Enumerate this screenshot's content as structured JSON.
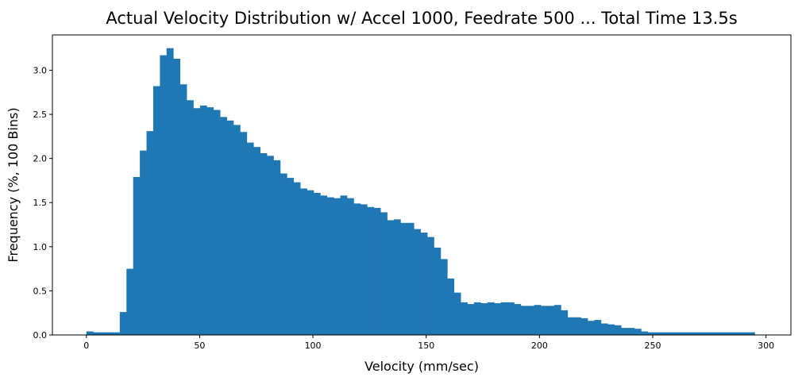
{
  "chart_data": {
    "type": "bar",
    "subtype": "histogram",
    "title": "Actual Velocity Distribution w/ Accel 1000, Feedrate 500 ... Total Time 13.5s",
    "xlabel": "Velocity (mm/sec)",
    "ylabel": "Frequency (%, 100 Bins)",
    "xlim": [
      -15,
      311
    ],
    "ylim": [
      0,
      3.4
    ],
    "bin_start": 0,
    "bin_width": 2.95,
    "xticks": [
      0,
      50,
      100,
      150,
      200,
      250,
      300
    ],
    "yticks": [
      "0.0",
      "0.5",
      "1.0",
      "1.5",
      "2.0",
      "2.5",
      "3.0"
    ],
    "grid": false,
    "color": "#1f77b4",
    "values": [
      0.04,
      0.03,
      0.03,
      0.03,
      0.03,
      0.26,
      0.75,
      1.79,
      2.09,
      2.31,
      2.82,
      3.17,
      3.25,
      3.13,
      2.84,
      2.66,
      2.57,
      2.6,
      2.58,
      2.55,
      2.47,
      2.43,
      2.38,
      2.3,
      2.18,
      2.13,
      2.06,
      2.03,
      1.98,
      1.83,
      1.78,
      1.73,
      1.66,
      1.64,
      1.61,
      1.58,
      1.56,
      1.55,
      1.58,
      1.55,
      1.49,
      1.48,
      1.45,
      1.44,
      1.39,
      1.3,
      1.31,
      1.27,
      1.27,
      1.2,
      1.16,
      1.11,
      0.99,
      0.86,
      0.64,
      0.48,
      0.37,
      0.35,
      0.37,
      0.36,
      0.37,
      0.36,
      0.37,
      0.37,
      0.35,
      0.33,
      0.33,
      0.34,
      0.33,
      0.33,
      0.34,
      0.28,
      0.2,
      0.2,
      0.19,
      0.16,
      0.17,
      0.13,
      0.12,
      0.11,
      0.08,
      0.08,
      0.07,
      0.04,
      0.03,
      0.03,
      0.03,
      0.03,
      0.03,
      0.03,
      0.03,
      0.03,
      0.03,
      0.03,
      0.03,
      0.03,
      0.03,
      0.03,
      0.03,
      0.03
    ]
  }
}
